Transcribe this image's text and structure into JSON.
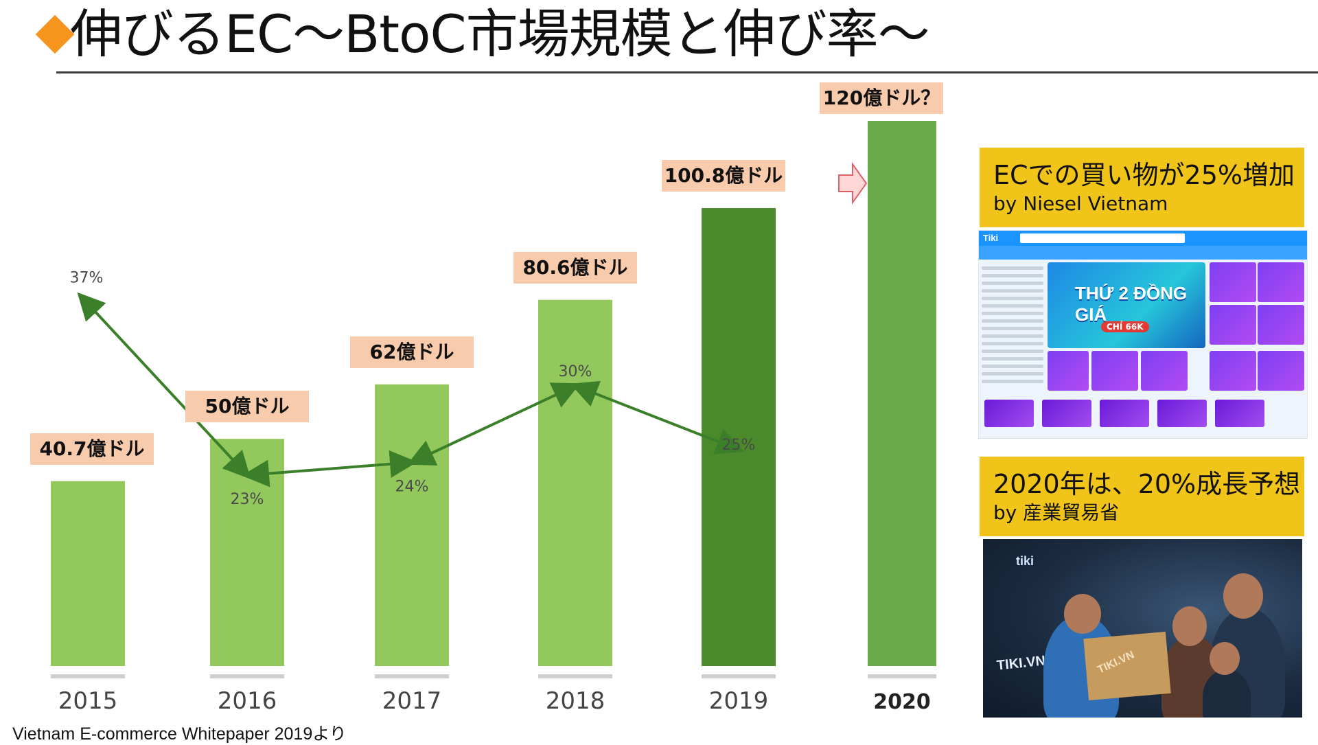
{
  "slide": {
    "title": "伸びるEC～BtoC市場規模と伸び率～",
    "source": "Vietnam E-commerce Whitepaper 2019より"
  },
  "callouts": [
    {
      "headline": "ECでの買い物が25%増加",
      "byline": "by Niesel Vietnam"
    },
    {
      "headline": "2020年は、20%成長予想",
      "byline": "by 産業貿易省"
    }
  ],
  "chart_data": {
    "type": "bar",
    "title": "",
    "xlabel": "",
    "ylabel": "",
    "categories": [
      "2015",
      "2016",
      "2017",
      "2018",
      "2019",
      "2020"
    ],
    "series": [
      {
        "values": [
          40.7,
          50,
          62,
          80.6,
          100.8,
          120
        ],
        "value_labels": [
          "40.7億ドル",
          "50億ドル",
          "62億ドル",
          "80.6億ドル",
          "100.8億ドル",
          "120億ドル？"
        ],
        "growth_rates": [
          "37%",
          "23%",
          "24%",
          "30%",
          "25%",
          null
        ]
      }
    ],
    "ylim": [
      0,
      120
    ],
    "grid": false,
    "legend": "none",
    "colors": {
      "bar_light": "#92c85c",
      "bar_dark": "#4b8a2b",
      "bar_projection": "#6aaa48",
      "label_bg": "#f8cbad",
      "growth_line": "#3c7f2a",
      "arrow_fill": "#ffd7d7",
      "arrow_stroke": "#e0606a"
    }
  },
  "screenshots": [
    {
      "icon": "tiki-website-icon",
      "logo_text": "Tiki",
      "promo_text": "THỨ 2 ĐỒNG GIÁ",
      "tag_text": "CHỈ 66K"
    },
    {
      "icon": "tiki-delivery-photo-icon",
      "logo_text": "tiki",
      "van_text": "TIKI.VN",
      "box_text": "TIKI.VN"
    }
  ]
}
